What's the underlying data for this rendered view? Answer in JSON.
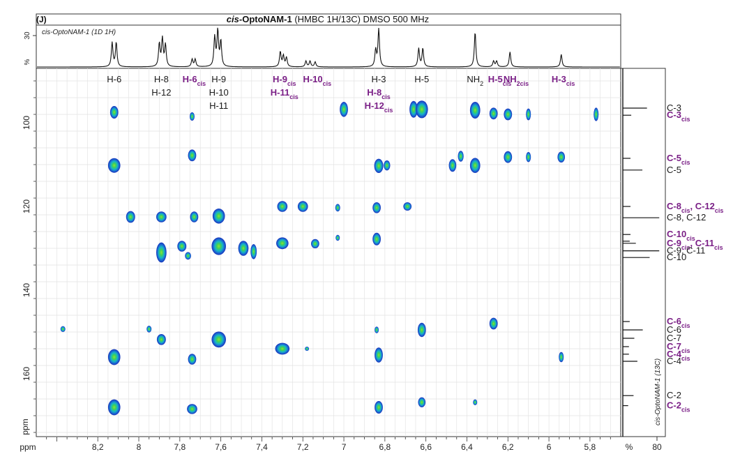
{
  "panel_label": "(J)",
  "title": {
    "compound_italic": "cis-",
    "compound_bold": "OptoNAM-1",
    "rest": " (HMBC 1H/13C) DMSO 500 MHz"
  },
  "top_trace_label": "cis-OptoNAM-1  (1D 1H)",
  "side_trace_label": "cis-OptoNAM-1  (13C)",
  "top_axis": {
    "unit": "%",
    "tick": "30"
  },
  "side_axis": {
    "unit": "%",
    "tick": "80"
  },
  "x_unit": "ppm",
  "y_unit": "ppm",
  "colors": {
    "trans_label": "#1a1a1a",
    "cis_label": "#7a1f86",
    "grid": "#e3e3e3",
    "peak_outer": "#1533b8",
    "peak_mid": "#16b4c9",
    "peak_core": "#7fe034"
  },
  "chart_data": {
    "type": "heatmap",
    "subtype": "2D HMBC NMR contour plot",
    "title": "cis-OptoNAM-1 (HMBC 1H/13C) DMSO 500 MHz",
    "xlabel": "ppm",
    "ylabel": "ppm",
    "xlim": [
      8.5,
      5.65
    ],
    "ylim": [
      87,
      175
    ],
    "x_axis_reversed": true,
    "y_axis_reversed": true,
    "grid": true,
    "x_ticks": [
      "8,2",
      "8",
      "7,8",
      "7,6",
      "7,4",
      "7,2",
      "7",
      "6,8",
      "6,6",
      "6,4",
      "6,2",
      "6",
      "5,8"
    ],
    "x_tick_values": [
      8.2,
      8.0,
      7.8,
      7.6,
      7.4,
      7.2,
      7.0,
      6.8,
      6.6,
      6.4,
      6.2,
      6.0,
      5.8
    ],
    "y_ticks": [
      "100",
      "120",
      "140",
      "160"
    ],
    "y_tick_values": [
      100,
      120,
      140,
      160
    ],
    "proton_labels": [
      {
        "lines": [
          "H-6"
        ],
        "x": 8.12,
        "cis": [
          false
        ]
      },
      {
        "lines": [
          "H-8",
          "H-12"
        ],
        "x": 7.89,
        "cis": [
          false,
          false
        ]
      },
      {
        "lines": [
          "H-6cis"
        ],
        "x": 7.73,
        "cis": [
          true
        ]
      },
      {
        "lines": [
          "H-9",
          "H-10",
          "H-11"
        ],
        "x": 7.61,
        "cis": [
          false,
          false,
          false
        ]
      },
      {
        "lines": [
          "H-9cis",
          "H-11cis"
        ],
        "x": 7.29,
        "cis": [
          true,
          true
        ]
      },
      {
        "lines": [
          "H-10cis"
        ],
        "x": 7.13,
        "cis": [
          true
        ]
      },
      {
        "lines": [
          "H-3",
          "H-8cis",
          "H-12cis"
        ],
        "x": 6.83,
        "cis": [
          false,
          true,
          true
        ]
      },
      {
        "lines": [
          "H-5"
        ],
        "x": 6.62,
        "cis": [
          false
        ]
      },
      {
        "lines": [
          "NH2"
        ],
        "x": 6.36,
        "cis": [
          false
        ]
      },
      {
        "lines": [
          "H-5cis"
        ],
        "x": 6.24,
        "cis": [
          true
        ]
      },
      {
        "lines": [
          "NH2cis"
        ],
        "x": 6.16,
        "cis": [
          true
        ]
      },
      {
        "lines": [
          "H-3cis"
        ],
        "x": 5.93,
        "cis": [
          true
        ]
      }
    ],
    "carbon_labels": [
      {
        "text": "C-3",
        "y": 96.5,
        "cis": false
      },
      {
        "text": "C-3cis",
        "y": 98.2,
        "cis": true
      },
      {
        "text": "C-5cis",
        "y": 108.5,
        "cis": true
      },
      {
        "text": "C-5",
        "y": 111.3,
        "cis": false
      },
      {
        "text": "C-8cis, C-12cis",
        "y": 120.0,
        "cis": true
      },
      {
        "text": "C-8, C-12",
        "y": 122.7,
        "cis": false
      },
      {
        "text": "C-10cis",
        "y": 126.7,
        "cis": true
      },
      {
        "text": "C-9cis, C-11cis",
        "y": 128.8,
        "cis": true
      },
      {
        "text": "C-9, C-11",
        "y": 130.6,
        "cis": false
      },
      {
        "text": "C-10",
        "y": 132.2,
        "cis": false
      },
      {
        "text": "C-6cis",
        "y": 147.5,
        "cis": true
      },
      {
        "text": "C-6",
        "y": 149.5,
        "cis": false
      },
      {
        "text": "C-7",
        "y": 151.5,
        "cis": false
      },
      {
        "text": "C-7cis",
        "y": 153.5,
        "cis": true
      },
      {
        "text": "C-4cis",
        "y": 155.3,
        "cis": true
      },
      {
        "text": "C-4",
        "y": 157.0,
        "cis": false
      },
      {
        "text": "C-2",
        "y": 165.2,
        "cis": false
      },
      {
        "text": "C-2cis",
        "y": 167.6,
        "cis": true
      }
    ],
    "cross_peaks": [
      {
        "x": 8.12,
        "y": 97.5,
        "w": 0.02,
        "h": 3.0
      },
      {
        "x": 8.12,
        "y": 110.2,
        "w": 0.03,
        "h": 3.5
      },
      {
        "x": 8.12,
        "y": 156.0,
        "w": 0.03,
        "h": 3.8
      },
      {
        "x": 8.12,
        "y": 168.0,
        "w": 0.03,
        "h": 3.8
      },
      {
        "x": 8.04,
        "y": 122.5,
        "w": 0.022,
        "h": 2.8
      },
      {
        "x": 8.37,
        "y": 149.3,
        "w": 0.012,
        "h": 1.4
      },
      {
        "x": 7.95,
        "y": 149.3,
        "w": 0.012,
        "h": 1.6
      },
      {
        "x": 7.89,
        "y": 122.5,
        "w": 0.025,
        "h": 2.6
      },
      {
        "x": 7.89,
        "y": 131.0,
        "w": 0.025,
        "h": 4.8
      },
      {
        "x": 7.89,
        "y": 151.8,
        "w": 0.022,
        "h": 2.6
      },
      {
        "x": 7.79,
        "y": 129.5,
        "w": 0.022,
        "h": 2.6
      },
      {
        "x": 7.76,
        "y": 131.8,
        "w": 0.015,
        "h": 1.8
      },
      {
        "x": 7.74,
        "y": 98.5,
        "w": 0.012,
        "h": 2.0
      },
      {
        "x": 7.74,
        "y": 107.8,
        "w": 0.02,
        "h": 2.8
      },
      {
        "x": 7.73,
        "y": 122.5,
        "w": 0.02,
        "h": 2.6
      },
      {
        "x": 7.74,
        "y": 156.5,
        "w": 0.02,
        "h": 2.6
      },
      {
        "x": 7.74,
        "y": 168.4,
        "w": 0.025,
        "h": 2.4
      },
      {
        "x": 7.61,
        "y": 122.3,
        "w": 0.03,
        "h": 3.6
      },
      {
        "x": 7.61,
        "y": 129.5,
        "w": 0.035,
        "h": 4.2
      },
      {
        "x": 7.61,
        "y": 151.8,
        "w": 0.035,
        "h": 3.8
      },
      {
        "x": 7.49,
        "y": 130.0,
        "w": 0.025,
        "h": 3.6
      },
      {
        "x": 7.44,
        "y": 130.8,
        "w": 0.015,
        "h": 3.6
      },
      {
        "x": 7.3,
        "y": 120.0,
        "w": 0.025,
        "h": 2.6
      },
      {
        "x": 7.3,
        "y": 128.8,
        "w": 0.03,
        "h": 2.8
      },
      {
        "x": 7.3,
        "y": 154.0,
        "w": 0.035,
        "h": 2.8
      },
      {
        "x": 7.18,
        "y": 154.0,
        "w": 0.008,
        "h": 1.0
      },
      {
        "x": 7.2,
        "y": 120.0,
        "w": 0.025,
        "h": 2.6
      },
      {
        "x": 7.14,
        "y": 128.9,
        "w": 0.02,
        "h": 2.2
      },
      {
        "x": 7.03,
        "y": 120.3,
        "w": 0.012,
        "h": 1.8
      },
      {
        "x": 7.03,
        "y": 127.5,
        "w": 0.01,
        "h": 1.4
      },
      {
        "x": 7.0,
        "y": 96.8,
        "w": 0.02,
        "h": 3.6
      },
      {
        "x": 6.84,
        "y": 120.3,
        "w": 0.02,
        "h": 2.6
      },
      {
        "x": 6.84,
        "y": 127.8,
        "w": 0.02,
        "h": 3.0
      },
      {
        "x": 6.83,
        "y": 110.3,
        "w": 0.022,
        "h": 3.4
      },
      {
        "x": 6.79,
        "y": 110.2,
        "w": 0.016,
        "h": 2.4
      },
      {
        "x": 6.84,
        "y": 149.5,
        "w": 0.01,
        "h": 1.6
      },
      {
        "x": 6.83,
        "y": 155.5,
        "w": 0.02,
        "h": 3.6
      },
      {
        "x": 6.83,
        "y": 168.0,
        "w": 0.02,
        "h": 3.0
      },
      {
        "x": 6.69,
        "y": 120.0,
        "w": 0.02,
        "h": 2.0
      },
      {
        "x": 6.66,
        "y": 96.8,
        "w": 0.02,
        "h": 4.0
      },
      {
        "x": 6.62,
        "y": 96.8,
        "w": 0.03,
        "h": 4.2
      },
      {
        "x": 6.62,
        "y": 149.5,
        "w": 0.02,
        "h": 3.4
      },
      {
        "x": 6.62,
        "y": 166.8,
        "w": 0.018,
        "h": 2.4
      },
      {
        "x": 6.47,
        "y": 110.2,
        "w": 0.018,
        "h": 3.0
      },
      {
        "x": 6.43,
        "y": 108.0,
        "w": 0.014,
        "h": 2.6
      },
      {
        "x": 6.36,
        "y": 97.0,
        "w": 0.025,
        "h": 4.0
      },
      {
        "x": 6.36,
        "y": 110.2,
        "w": 0.025,
        "h": 3.6
      },
      {
        "x": 6.36,
        "y": 166.8,
        "w": 0.008,
        "h": 1.4
      },
      {
        "x": 6.27,
        "y": 97.8,
        "w": 0.02,
        "h": 2.8
      },
      {
        "x": 6.27,
        "y": 148.0,
        "w": 0.02,
        "h": 2.8
      },
      {
        "x": 6.2,
        "y": 98.0,
        "w": 0.02,
        "h": 2.8
      },
      {
        "x": 6.2,
        "y": 108.2,
        "w": 0.02,
        "h": 2.8
      },
      {
        "x": 6.1,
        "y": 98.0,
        "w": 0.012,
        "h": 2.8
      },
      {
        "x": 6.1,
        "y": 108.2,
        "w": 0.012,
        "h": 2.4
      },
      {
        "x": 5.94,
        "y": 108.2,
        "w": 0.018,
        "h": 2.6
      },
      {
        "x": 5.94,
        "y": 156.0,
        "w": 0.012,
        "h": 2.4
      },
      {
        "x": 5.77,
        "y": 98.0,
        "w": 0.012,
        "h": 3.2
      }
    ],
    "top_1h_peaks": [
      {
        "x": 8.13,
        "h": 0.58
      },
      {
        "x": 8.11,
        "h": 0.58
      },
      {
        "x": 7.9,
        "h": 0.55
      },
      {
        "x": 7.885,
        "h": 0.66
      },
      {
        "x": 7.87,
        "h": 0.52
      },
      {
        "x": 7.74,
        "h": 0.18
      },
      {
        "x": 7.725,
        "h": 0.18
      },
      {
        "x": 7.63,
        "h": 0.7
      },
      {
        "x": 7.615,
        "h": 0.85
      },
      {
        "x": 7.6,
        "h": 0.6
      },
      {
        "x": 7.31,
        "h": 0.36
      },
      {
        "x": 7.295,
        "h": 0.26
      },
      {
        "x": 7.28,
        "h": 0.22
      },
      {
        "x": 7.185,
        "h": 0.14
      },
      {
        "x": 7.165,
        "h": 0.14
      },
      {
        "x": 7.14,
        "h": 0.12
      },
      {
        "x": 6.845,
        "h": 0.4
      },
      {
        "x": 6.83,
        "h": 0.9
      },
      {
        "x": 6.635,
        "h": 0.44
      },
      {
        "x": 6.615,
        "h": 0.44
      },
      {
        "x": 6.36,
        "h": 0.84
      },
      {
        "x": 6.27,
        "h": 0.14
      },
      {
        "x": 6.255,
        "h": 0.14
      },
      {
        "x": 6.19,
        "h": 0.36
      },
      {
        "x": 5.94,
        "h": 0.3
      }
    ],
    "side_13c_peaks": [
      {
        "y": 96.5,
        "h": 0.63
      },
      {
        "y": 98.2,
        "h": 0.22
      },
      {
        "y": 108.5,
        "h": 0.2
      },
      {
        "y": 111.3,
        "h": 0.51
      },
      {
        "y": 120.0,
        "h": 0.2
      },
      {
        "y": 122.7,
        "h": 0.95
      },
      {
        "y": 126.7,
        "h": 0.2
      },
      {
        "y": 128.3,
        "h": 0.18
      },
      {
        "y": 128.8,
        "h": 0.34
      },
      {
        "y": 130.6,
        "h": 0.95
      },
      {
        "y": 132.2,
        "h": 0.7
      },
      {
        "y": 147.5,
        "h": 0.18
      },
      {
        "y": 149.5,
        "h": 0.52
      },
      {
        "y": 151.5,
        "h": 0.3
      },
      {
        "y": 153.5,
        "h": 0.16
      },
      {
        "y": 155.3,
        "h": 0.16
      },
      {
        "y": 157.0,
        "h": 0.38
      },
      {
        "y": 165.2,
        "h": 0.28
      },
      {
        "y": 167.6,
        "h": 0.14
      }
    ]
  }
}
